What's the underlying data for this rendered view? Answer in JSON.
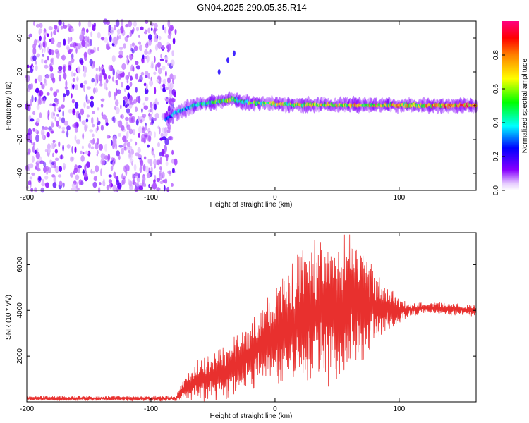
{
  "title": "GN04.2025.290.05.35.R14",
  "chart_data": [
    {
      "type": "heatmap",
      "name": "spectrogram",
      "xlabel": "Height of straight line (km)",
      "ylabel": "Frequency (Hz)",
      "xlim": [
        -200,
        162
      ],
      "ylim": [
        -50,
        50
      ],
      "xticks": [
        -200,
        -100,
        0,
        100
      ],
      "xtick_labels": [
        "-200",
        "-100",
        "0",
        "100"
      ],
      "yticks": [
        -40,
        -20,
        0,
        20,
        40
      ],
      "ytick_labels": [
        "-40",
        "-20",
        "0",
        "20",
        "40"
      ],
      "noise_region_x": [
        -200,
        -80
      ],
      "trace": {
        "x": [
          -88,
          -80,
          -70,
          -60,
          -50,
          -40,
          -35,
          -30,
          -25,
          -20,
          -10,
          0,
          10,
          20,
          40,
          60,
          80,
          100,
          120,
          140,
          162
        ],
        "freq": [
          -8,
          -4,
          -1,
          1,
          2,
          3,
          4,
          3,
          2,
          2,
          1.5,
          1,
          0.8,
          0.6,
          0.5,
          0.5,
          0.4,
          0.3,
          0.2,
          0.2,
          0.2
        ],
        "amplitude": [
          0.35,
          0.4,
          0.45,
          0.5,
          0.55,
          0.6,
          0.7,
          0.65,
          0.6,
          0.6,
          0.65,
          0.7,
          0.7,
          0.7,
          0.75,
          0.8,
          0.8,
          0.8,
          0.8,
          0.9,
          0.95
        ]
      },
      "secondary_streaks": [
        {
          "x": -45,
          "freq": 20
        },
        {
          "x": -38,
          "freq": 27
        },
        {
          "x": -33,
          "freq": 31
        }
      ],
      "colorbar": {
        "label": "Normalized spectral amplitude",
        "range": [
          0,
          1
        ],
        "ticks": [
          0.0,
          0.2,
          0.4,
          0.6,
          0.8
        ],
        "tick_labels": [
          "0.0",
          "0.2",
          "0.4",
          "0.6",
          "0.8"
        ]
      }
    },
    {
      "type": "line",
      "name": "snr",
      "xlabel": "Height of straight line (km)",
      "ylabel": "SNR (10 * v/v)",
      "xlim": [
        -200,
        162
      ],
      "ylim": [
        0,
        7400
      ],
      "xticks": [
        -200,
        -100,
        0,
        100
      ],
      "xtick_labels": [
        "-200",
        "-100",
        "0",
        "100"
      ],
      "yticks": [
        2000,
        4000,
        6000
      ],
      "ytick_labels": [
        "2000",
        "4000",
        "6000"
      ],
      "series": [
        {
          "name": "SNR",
          "color": "#e8302e",
          "envelope_x": [
            -200,
            -80,
            -72,
            -60,
            -40,
            -20,
            0,
            10,
            20,
            30,
            40,
            50,
            60,
            70,
            80,
            90,
            100,
            110,
            120,
            140,
            162
          ],
          "envelope_mean": [
            150,
            150,
            600,
            1000,
            1300,
            2000,
            3000,
            3400,
            3700,
            3900,
            4100,
            4200,
            4300,
            4200,
            4100,
            4050,
            4000,
            4050,
            4100,
            4050,
            4000
          ],
          "envelope_amplitude": [
            100,
            120,
            500,
            1000,
            1100,
            1400,
            1900,
            2400,
            2800,
            3000,
            3100,
            3200,
            3100,
            2500,
            1700,
            1000,
            500,
            300,
            250,
            250,
            250
          ]
        }
      ]
    }
  ]
}
